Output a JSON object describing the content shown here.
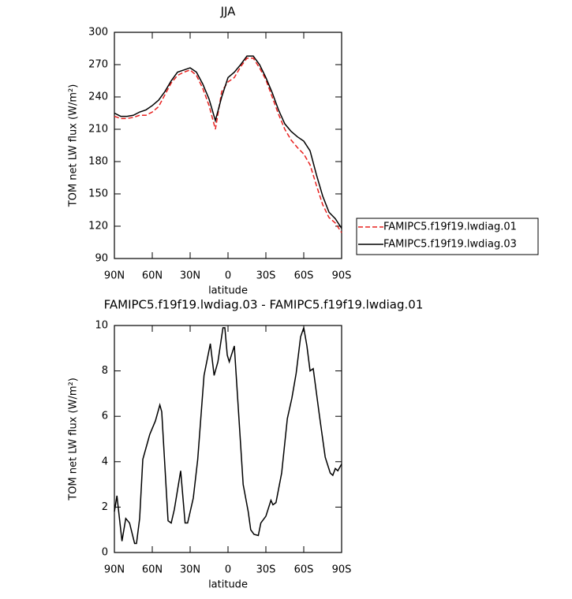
{
  "chart_data": [
    {
      "type": "line",
      "title": "JJA",
      "x_label": "latitude",
      "y_label": "TOM net LW flux (W/m²)",
      "xlim": [
        90,
        -90
      ],
      "xticks": [
        {
          "value": 90,
          "label": "90N"
        },
        {
          "value": 60,
          "label": "60N"
        },
        {
          "value": 30,
          "label": "30N"
        },
        0,
        {
          "value": -30,
          "label": "30S"
        },
        {
          "value": -60,
          "label": "60S"
        },
        {
          "value": -90,
          "label": "90S"
        }
      ],
      "ylim": [
        90,
        300
      ],
      "yticks": [
        90,
        120,
        150,
        180,
        210,
        240,
        270,
        300
      ],
      "x": [
        90,
        85,
        80,
        75,
        70,
        65,
        60,
        55,
        50,
        45,
        40,
        35,
        30,
        25,
        20,
        15,
        10,
        5,
        0,
        -5,
        -10,
        -15,
        -20,
        -25,
        -30,
        -35,
        -40,
        -45,
        -50,
        -55,
        -60,
        -65,
        -70,
        -75,
        -80,
        -85,
        -90
      ],
      "legend": "right",
      "series": [
        {
          "name": "FAMIPC5.f19f19.lwdiag.01",
          "color": "#e8201e",
          "line_style": "dashed",
          "values": [
            222,
            220,
            220,
            221,
            223,
            223,
            226,
            231,
            242,
            253,
            260,
            263,
            265,
            260,
            248,
            232,
            210,
            245,
            254,
            258,
            268,
            276,
            276,
            267,
            256,
            240,
            224,
            210,
            200,
            193,
            187,
            177,
            158,
            140,
            128,
            123,
            114
          ]
        },
        {
          "name": "FAMIPC5.f19f19.lwdiag.03",
          "color": "#000000",
          "line_style": "solid",
          "values": [
            225,
            222,
            222,
            223,
            226,
            228,
            232,
            237,
            245,
            255,
            263,
            265,
            267,
            263,
            252,
            238,
            218,
            240,
            258,
            263,
            270,
            278,
            278,
            270,
            258,
            244,
            228,
            215,
            208,
            203,
            199,
            190,
            168,
            148,
            133,
            127,
            118
          ]
        }
      ]
    },
    {
      "type": "line",
      "title": "FAMIPC5.f19f19.lwdiag.03 - FAMIPC5.f19f19.lwdiag.01",
      "x_label": "latitude",
      "y_label": "TOM net LW flux (W/m²)",
      "xlim": [
        90,
        -90
      ],
      "xticks": [
        {
          "value": 90,
          "label": "90N"
        },
        {
          "value": 60,
          "label": "60N"
        },
        {
          "value": 30,
          "label": "30N"
        },
        0,
        {
          "value": -30,
          "label": "30S"
        },
        {
          "value": -60,
          "label": "60S"
        },
        {
          "value": -90,
          "label": "90S"
        }
      ],
      "ylim": [
        0,
        10
      ],
      "yticks": [
        0,
        2,
        4,
        6,
        8,
        10
      ],
      "x": [
        90,
        88,
        84,
        81,
        78,
        74,
        72.5,
        70,
        67.5,
        62,
        57.5,
        54,
        52.5,
        47.5,
        45,
        42.5,
        37.5,
        34,
        32,
        27.5,
        24,
        19,
        14,
        11,
        8,
        4,
        2.5,
        0.6,
        -1,
        -5,
        -12,
        -16,
        -18,
        -20.6,
        -24,
        -26,
        -30,
        -34,
        -35.6,
        -38,
        -42.5,
        -47,
        -50.6,
        -54,
        -57.5,
        -60,
        -62.5,
        -65,
        -67.5,
        -72.5,
        -77,
        -81,
        -83,
        -85,
        -87,
        -90
      ],
      "series": [
        {
          "color": "#000000",
          "line_style": "solid",
          "values": [
            1.8,
            2.5,
            0.5,
            1.5,
            1.3,
            0.4,
            0.4,
            1.5,
            4.1,
            5.2,
            5.8,
            6.5,
            6.2,
            1.4,
            1.3,
            1.9,
            3.6,
            1.3,
            1.3,
            2.4,
            4.1,
            7.8,
            9.2,
            7.8,
            8.4,
            9.9,
            9.9,
            8.7,
            8.4,
            9.1,
            3.0,
            1.8,
            1.0,
            0.8,
            0.75,
            1.3,
            1.6,
            2.3,
            2.1,
            2.2,
            3.5,
            5.9,
            6.8,
            7.9,
            9.5,
            9.9,
            9.1,
            8.0,
            8.1,
            6.0,
            4.2,
            3.5,
            3.4,
            3.7,
            3.6,
            3.9
          ]
        }
      ]
    }
  ]
}
